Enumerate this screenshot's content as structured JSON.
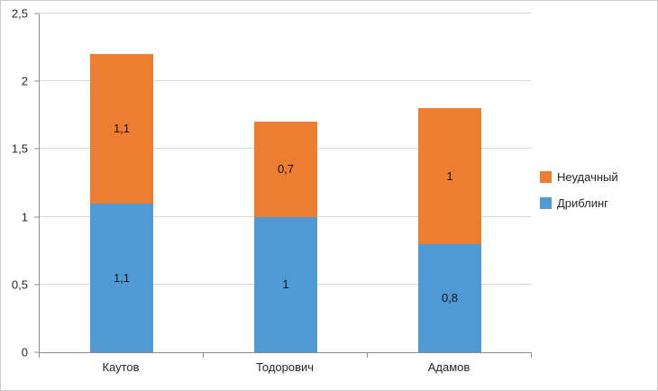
{
  "chart_data": {
    "type": "bar",
    "stacked": true,
    "title": "",
    "xlabel": "",
    "ylabel": "",
    "categories": [
      "Каутов",
      "Тодорович",
      "Адамов"
    ],
    "series": [
      {
        "name": "Дриблинг",
        "color": "#4F9AD5",
        "values": [
          1.1,
          1.0,
          0.8
        ],
        "labels": [
          "1,1",
          "1",
          "0,8"
        ]
      },
      {
        "name": "Неудачный",
        "color": "#ED7D31",
        "values": [
          1.1,
          0.7,
          1.0
        ],
        "labels": [
          "1,1",
          "0,7",
          "1"
        ]
      }
    ],
    "ylim": [
      0,
      2.5
    ],
    "yticks": [
      {
        "value": 0,
        "label": "0"
      },
      {
        "value": 0.5,
        "label": "0,5"
      },
      {
        "value": 1,
        "label": "1"
      },
      {
        "value": 1.5,
        "label": "1,5"
      },
      {
        "value": 2,
        "label": "2"
      },
      {
        "value": 2.5,
        "label": "2,5"
      }
    ],
    "grid": true,
    "legend_position": "right",
    "legend": [
      {
        "name": "Неудачный",
        "color": "#ED7D31"
      },
      {
        "name": "Дриблинг",
        "color": "#4F9AD5"
      }
    ],
    "colors": {
      "gridline": "#d9d9d9",
      "axis_line": "#8c8c8c",
      "text": "#262626"
    }
  }
}
